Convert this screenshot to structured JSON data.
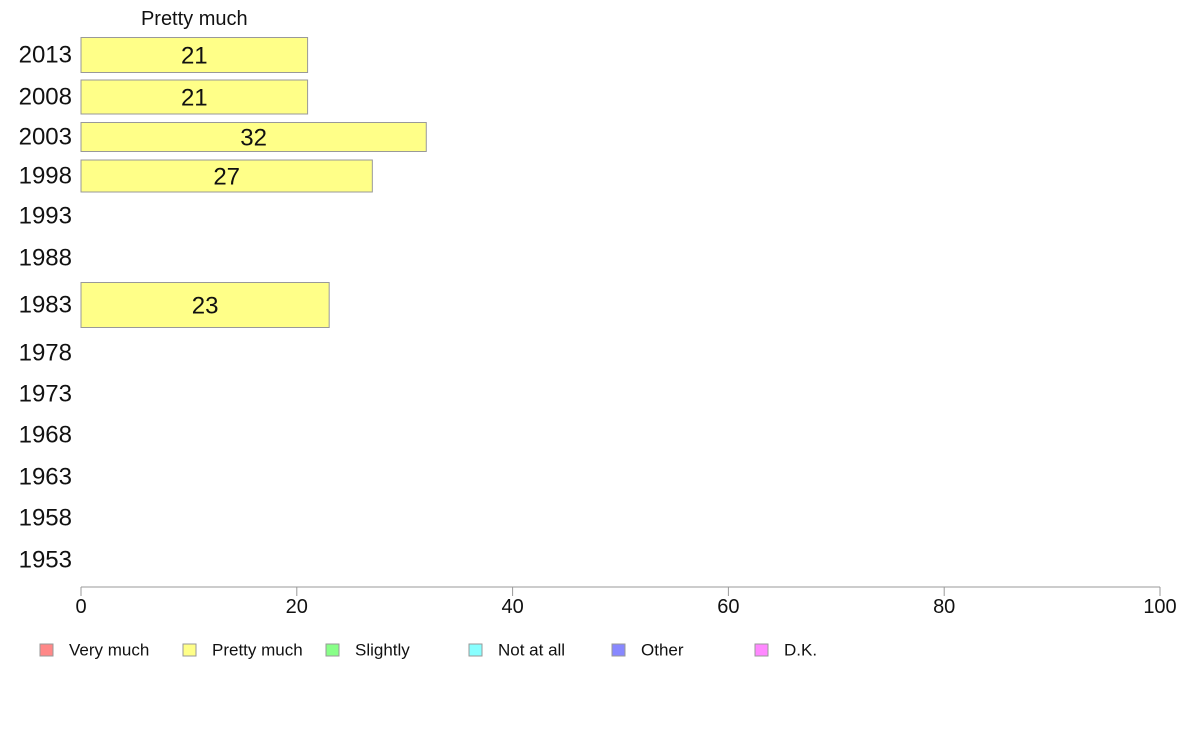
{
  "chart_data": {
    "type": "bar",
    "orientation": "horizontal",
    "stacked": true,
    "categories": [
      "2013",
      "2008",
      "2003",
      "1998",
      "1993",
      "1988",
      "1983",
      "1978",
      "1973",
      "1968",
      "1963",
      "1958",
      "1953"
    ],
    "series": [
      {
        "name": "Very much",
        "color": "#ff8888",
        "values": [
          null,
          null,
          null,
          null,
          null,
          null,
          null,
          null,
          null,
          null,
          null,
          null,
          null
        ]
      },
      {
        "name": "Pretty much",
        "color": "#ffff88",
        "values": [
          21,
          21,
          32,
          27,
          null,
          null,
          23,
          null,
          null,
          null,
          null,
          null,
          null
        ]
      },
      {
        "name": "Slightly",
        "color": "#88ff88",
        "values": [
          null,
          null,
          null,
          null,
          null,
          null,
          null,
          null,
          null,
          null,
          null,
          null,
          null
        ]
      },
      {
        "name": "Not at all",
        "color": "#88ffff",
        "values": [
          null,
          null,
          null,
          null,
          null,
          null,
          null,
          null,
          null,
          null,
          null,
          null,
          null
        ]
      },
      {
        "name": "Other",
        "color": "#8888ff",
        "values": [
          null,
          null,
          null,
          null,
          null,
          null,
          null,
          null,
          null,
          null,
          null,
          null,
          null
        ]
      },
      {
        "name": "D.K.",
        "color": "#ff88ff",
        "values": [
          null,
          null,
          null,
          null,
          null,
          null,
          null,
          null,
          null,
          null,
          null,
          null,
          null
        ]
      }
    ],
    "bar_value_labels": [
      "21",
      "21",
      "32",
      "27",
      "",
      "",
      "23",
      "",
      "",
      "",
      "",
      "",
      ""
    ],
    "header_label": "Pretty much",
    "xlim": [
      0,
      100
    ],
    "xticks": [
      0,
      20,
      40,
      60,
      80,
      100
    ],
    "xtick_labels": [
      "0",
      "20",
      "40",
      "60",
      "80",
      "100"
    ],
    "grid": false,
    "legend_position": "bottom",
    "bar_stroke_color": "#999999",
    "axis_color": "#999999"
  }
}
